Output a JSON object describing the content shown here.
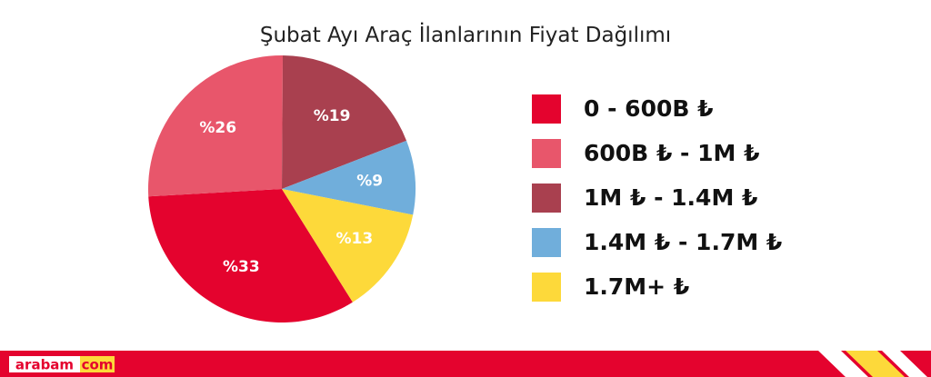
{
  "chart_data": {
    "type": "pie",
    "title": "Şubat Ayı Araç İlanlarının Fiyat Dağılımı",
    "categories": [
      "0 - 600B ₺",
      "600B ₺ - 1M ₺",
      "1M ₺ - 1.4M ₺",
      "1.4M ₺ - 1.7M ₺",
      "1.7M+ ₺"
    ],
    "values": [
      33,
      26,
      19,
      9,
      13
    ],
    "value_labels": [
      "%33",
      "%26",
      "%19",
      "%9",
      "%13"
    ],
    "colors": [
      "#e4032e",
      "#e8566b",
      "#a9404f",
      "#70aedb",
      "#fdd93a"
    ],
    "legend": "right"
  },
  "footer": {
    "brand": "arabam",
    "tld": "com"
  }
}
